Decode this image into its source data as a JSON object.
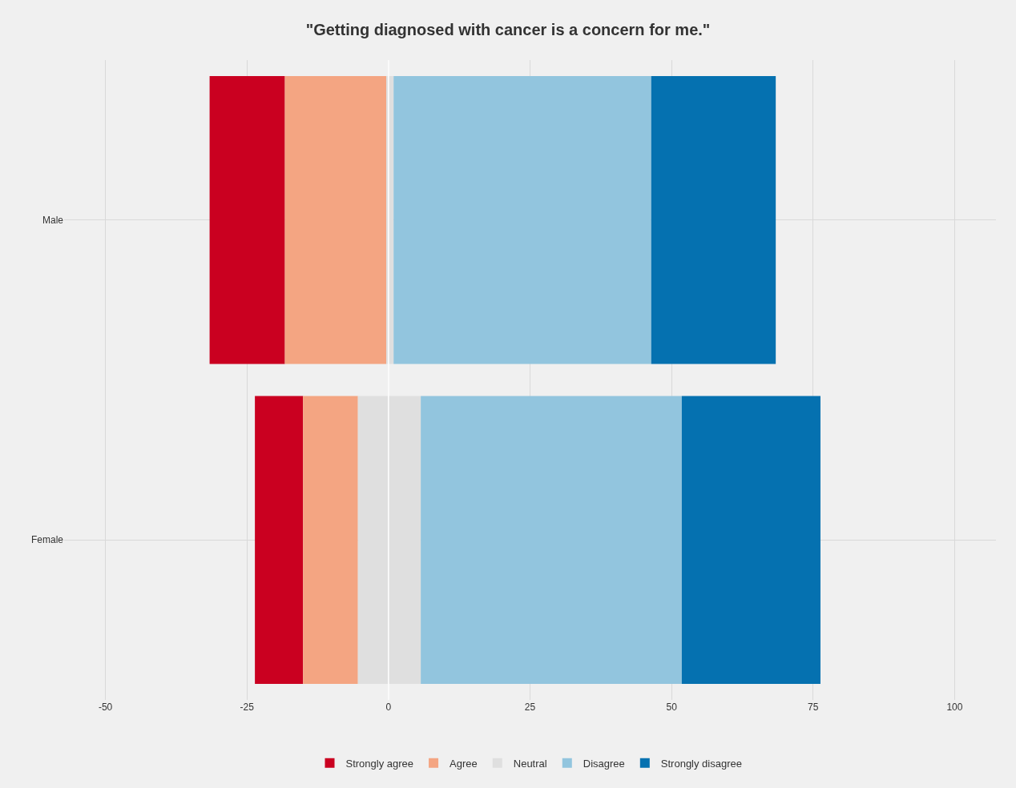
{
  "chart_data": {
    "type": "bar",
    "orientation": "horizontal",
    "title": "\"Getting diagnosed with cancer is a concern for me.\"",
    "categories": [
      "Male",
      "Female"
    ],
    "series": [
      {
        "name": "Strongly agree",
        "color": "#ca0020",
        "base": [
          -31.6,
          -23.6
        ],
        "values": [
          13.3,
          8.5
        ]
      },
      {
        "name": "Agree",
        "color": "#f4a582",
        "base": [
          -18.3,
          -15.1
        ],
        "values": [
          17.9,
          9.7
        ]
      },
      {
        "name": "Neutral",
        "color": "#dfdfdf",
        "base": [
          -0.4,
          -5.4
        ],
        "values": [
          1.3,
          11.1
        ]
      },
      {
        "name": "Disagree",
        "color": "#92c5de",
        "base": [
          0.9,
          5.7
        ],
        "values": [
          45.5,
          46.1
        ]
      },
      {
        "name": "Strongly disagree",
        "color": "#0571b0",
        "base": [
          46.4,
          51.8
        ],
        "values": [
          22.0,
          24.5
        ]
      }
    ],
    "xlim": [
      -57.3,
      107.3
    ],
    "xticks": [
      -50,
      -25,
      0,
      25,
      50,
      75,
      100
    ],
    "ref_lines": [
      {
        "axis": "x",
        "value": 0,
        "color": "#ffffff"
      }
    ],
    "grid": true,
    "legend": "bottom"
  }
}
